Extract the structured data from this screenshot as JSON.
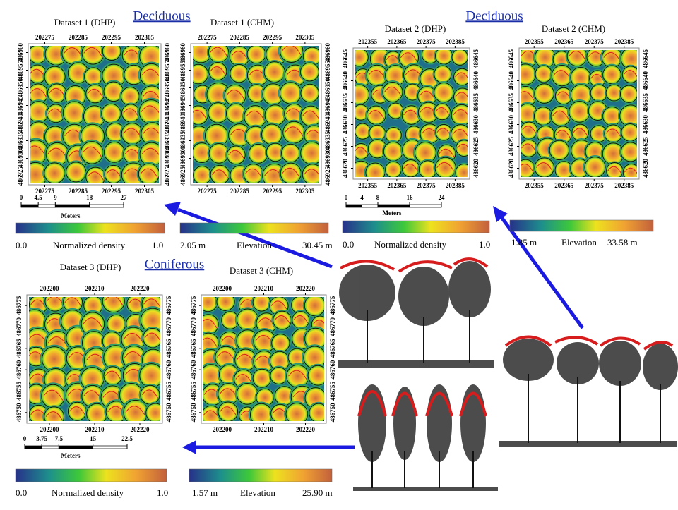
{
  "panels": [
    {
      "heading": "Deciduous",
      "maps": [
        {
          "title": "Dataset 1 (DHP)"
        },
        {
          "title": "Dataset 1 (CHM)"
        }
      ],
      "x_ticks": [
        202275,
        202285,
        202295,
        202305
      ],
      "y_ticks": [
        486960,
        486955,
        486950,
        486945,
        486940,
        486935,
        486930,
        486925
      ],
      "scale_bar": {
        "ticks": [
          0,
          4.5,
          9,
          18,
          27
        ],
        "unit": "Meters"
      },
      "colorbars": [
        {
          "min": "0.0",
          "label": "Normalized density",
          "max": "1.0"
        },
        {
          "min": "2.05 m",
          "label": "Elevation",
          "max": "30.45 m"
        }
      ]
    },
    {
      "heading": "Deciduous",
      "maps": [
        {
          "title": "Dataset 2 (DHP)"
        },
        {
          "title": "Dataset 2 (CHM)"
        }
      ],
      "x_ticks": [
        202355,
        202365,
        202375,
        202385
      ],
      "y_ticks": [
        486645,
        486640,
        486635,
        486630,
        486625,
        486620
      ],
      "scale_bar": {
        "ticks": [
          0,
          4,
          8,
          16,
          24
        ],
        "unit": "Meters"
      },
      "colorbars": [
        {
          "min": "0.0",
          "label": "Normalized density",
          "max": "1.0"
        },
        {
          "min": "1.85 m",
          "label": "Elevation",
          "max": "33.58 m"
        }
      ]
    },
    {
      "heading": "Coniferous",
      "maps": [
        {
          "title": "Dataset 3 (DHP)"
        },
        {
          "title": "Dataset 3 (CHM)"
        }
      ],
      "x_ticks": [
        202200,
        202210,
        202220
      ],
      "y_ticks": [
        486775,
        486770,
        486765,
        486760,
        486755,
        486750
      ],
      "scale_bar": {
        "ticks": [
          0,
          3.75,
          7.5,
          15,
          22.5
        ],
        "unit": "Meters"
      },
      "colorbars": [
        {
          "min": "0.0",
          "label": "Normalized density",
          "max": "1.0"
        },
        {
          "min": "1.57 m",
          "label": "Elevation",
          "max": "25.90 m"
        }
      ]
    }
  ]
}
